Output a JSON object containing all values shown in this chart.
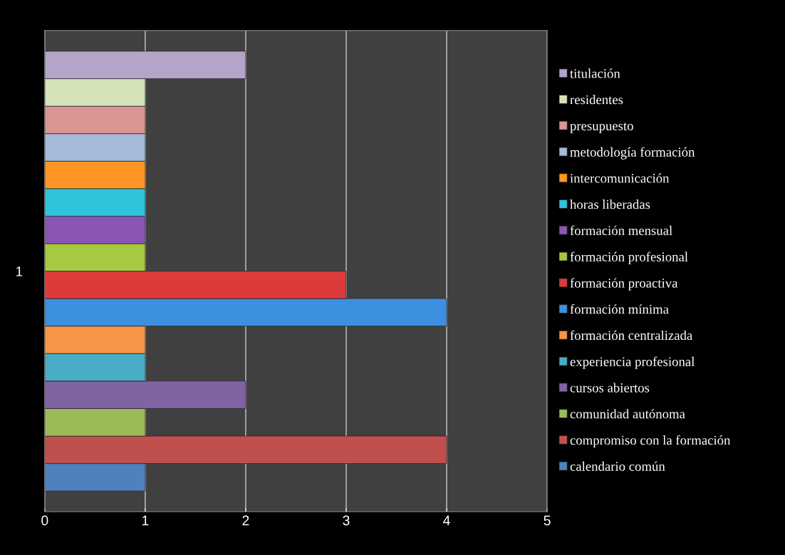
{
  "chart_data": {
    "type": "bar",
    "orientation": "horizontal",
    "categories": [
      "1"
    ],
    "series": [
      {
        "name": "calendario común",
        "color": "#4f81bd",
        "values": [
          1
        ]
      },
      {
        "name": "compromiso con la formación",
        "color": "#c0504d",
        "values": [
          4
        ]
      },
      {
        "name": "comunidad autónoma",
        "color": "#9bbb59",
        "values": [
          1
        ]
      },
      {
        "name": "cursos abiertos",
        "color": "#8064a2",
        "values": [
          2
        ]
      },
      {
        "name": "experiencia profesional",
        "color": "#4bacc6",
        "values": [
          1
        ]
      },
      {
        "name": "formación centralizada",
        "color": "#f79646",
        "values": [
          1
        ]
      },
      {
        "name": "formación mínima",
        "color": "#3d8fe0",
        "values": [
          4
        ]
      },
      {
        "name": "formación proactiva",
        "color": "#dd3b3b",
        "values": [
          3
        ]
      },
      {
        "name": "formación profesional",
        "color": "#a5c940",
        "values": [
          1
        ]
      },
      {
        "name": "formación mensual",
        "color": "#8a55b5",
        "values": [
          1
        ]
      },
      {
        "name": "horas liberadas",
        "color": "#2ec4dc",
        "values": [
          1
        ]
      },
      {
        "name": "intercomunicación",
        "color": "#ff9524",
        "values": [
          1
        ]
      },
      {
        "name": "metodología formación",
        "color": "#a7b9d9",
        "values": [
          1
        ]
      },
      {
        "name": "presupuesto",
        "color": "#d99694",
        "values": [
          1
        ]
      },
      {
        "name": "residentes",
        "color": "#d4e3b8",
        "values": [
          1
        ]
      },
      {
        "name": "titulación",
        "color": "#b4a4c8",
        "values": [
          2
        ]
      }
    ],
    "xlim": [
      0,
      5
    ],
    "xticks": [
      0,
      1,
      2,
      3,
      4,
      5
    ],
    "grid": "x",
    "legend": "right"
  }
}
